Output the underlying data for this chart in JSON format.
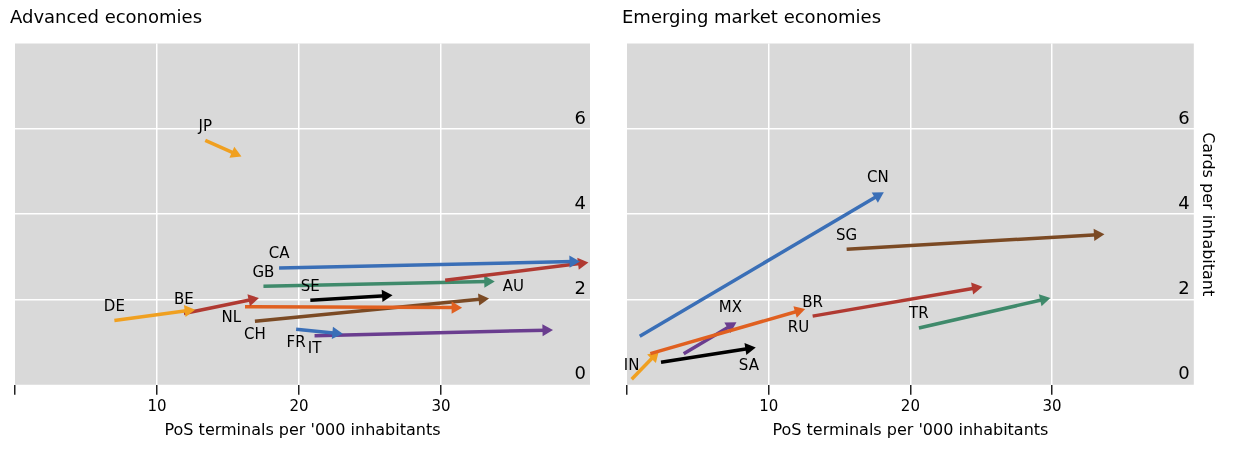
{
  "chart_data": [
    {
      "type": "line",
      "title": "Advanced economies",
      "xlabel": "PoS terminals per '000 inhabitants",
      "xlim": [
        0,
        40.5
      ],
      "xticks": [
        {
          "value": 0,
          "label": null
        },
        10,
        20,
        30
      ],
      "ylim": [
        0,
        8
      ],
      "yticks": [
        0,
        2,
        4,
        6
      ],
      "grid": true,
      "legend": false,
      "marker": "triangle",
      "series": [
        {
          "name": "JP",
          "color": "#f0a020",
          "x": [
            13.4,
            15.5
          ],
          "values": [
            5.73,
            5.42
          ]
        },
        {
          "name": "DE",
          "color": "#f0a020",
          "x": [
            7.0,
            12.2
          ],
          "values": [
            1.51,
            1.74
          ]
        },
        {
          "name": "BE",
          "color": "#b03a32",
          "x": [
            11.9,
            16.7
          ],
          "values": [
            1.67,
            2.0
          ]
        },
        {
          "name": "CA",
          "color": "#3a6fb7",
          "x": [
            18.6,
            39.3
          ],
          "values": [
            2.74,
            2.89
          ]
        },
        {
          "name": "AU",
          "color": "#b03a32",
          "x": [
            30.3,
            39.9
          ],
          "values": [
            2.45,
            2.85
          ]
        },
        {
          "name": "GB",
          "color": "#3f8a6b",
          "x": [
            17.5,
            33.3
          ],
          "values": [
            2.31,
            2.42
          ]
        },
        {
          "name": "SE",
          "color": "#000000",
          "x": [
            20.8,
            26.1
          ],
          "values": [
            1.98,
            2.09
          ]
        },
        {
          "name": "NL",
          "color": "#e06020",
          "x": [
            16.2,
            31.0
          ],
          "values": [
            1.83,
            1.81
          ]
        },
        {
          "name": "CH",
          "color": "#7b4a24",
          "x": [
            16.9,
            32.9
          ],
          "values": [
            1.49,
            2.01
          ]
        },
        {
          "name": "FR",
          "color": "#3a6fb7",
          "x": [
            19.8,
            22.6
          ],
          "values": [
            1.3,
            1.21
          ]
        },
        {
          "name": "IT",
          "color": "#6a3d8f",
          "x": [
            21.1,
            37.4
          ],
          "values": [
            1.15,
            1.28
          ]
        }
      ]
    },
    {
      "type": "line",
      "title": "Emerging market economies",
      "xlabel": "PoS terminals per '000 inhabitants",
      "ylabel": "Cards per inhabitant",
      "xlim": [
        0,
        40
      ],
      "xticks": [
        {
          "value": 0,
          "label": null
        },
        10,
        20,
        30
      ],
      "ylim": [
        0,
        8
      ],
      "yticks": [
        0,
        2,
        4,
        6
      ],
      "grid": true,
      "legend": false,
      "marker": "triangle",
      "series": [
        {
          "name": "CN",
          "color": "#3a6fb7",
          "x": [
            0.9,
            17.7
          ],
          "values": [
            1.14,
            4.43
          ]
        },
        {
          "name": "SG",
          "color": "#7b4a24",
          "x": [
            15.5,
            33.2
          ],
          "values": [
            3.18,
            3.52
          ]
        },
        {
          "name": "BR",
          "color": "#b03a32",
          "x": [
            13.1,
            24.6
          ],
          "values": [
            1.61,
            2.27
          ]
        },
        {
          "name": "TR",
          "color": "#3f8a6b",
          "x": [
            20.6,
            29.4
          ],
          "values": [
            1.33,
            2.0
          ]
        },
        {
          "name": "RU",
          "color": "#e06020",
          "x": [
            1.65,
            12.1
          ],
          "values": [
            0.73,
            1.73
          ]
        },
        {
          "name": "MX",
          "color": "#6a3d8f",
          "x": [
            4.0,
            7.3
          ],
          "values": [
            0.73,
            1.38
          ]
        },
        {
          "name": "SA",
          "color": "#000000",
          "x": [
            2.4,
            8.6
          ],
          "values": [
            0.53,
            0.85
          ]
        },
        {
          "name": "IN",
          "color": "#f0a020",
          "x": [
            0.33,
            1.9
          ],
          "values": [
            0.13,
            0.67
          ]
        }
      ]
    }
  ]
}
